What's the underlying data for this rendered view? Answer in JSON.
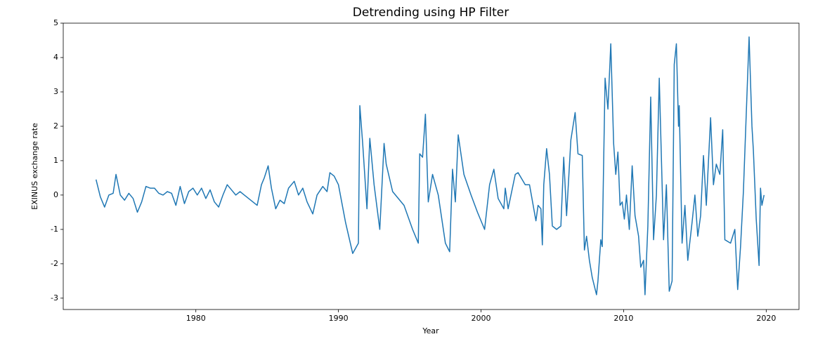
{
  "chart_data": {
    "type": "line",
    "title": "Detrending using HP Filter",
    "x_label": "Year",
    "y_label": "EXINUS exchange rate",
    "color": "#1f77b4",
    "x": [
      1973.0,
      1973.3,
      1973.6,
      1973.9,
      1974.2,
      1974.4,
      1974.7,
      1975.0,
      1975.3,
      1975.6,
      1975.9,
      1976.2,
      1976.5,
      1976.8,
      1977.1,
      1977.4,
      1977.7,
      1978.0,
      1978.3,
      1978.6,
      1978.9,
      1979.2,
      1979.5,
      1979.8,
      1980.1,
      1980.4,
      1980.7,
      1981.0,
      1981.3,
      1981.6,
      1981.9,
      1982.2,
      1982.5,
      1982.8,
      1983.1,
      1983.4,
      1983.7,
      1984.0,
      1984.3,
      1984.6,
      1984.8,
      1985.07,
      1985.3,
      1985.6,
      1985.9,
      1986.2,
      1986.5,
      1986.9,
      1987.2,
      1987.5,
      1987.8,
      1988.2,
      1988.5,
      1988.9,
      1989.2,
      1989.4,
      1989.7,
      1990.0,
      1990.5,
      1991.0,
      1991.4,
      1991.5,
      1991.7,
      1992.0,
      1992.2,
      1992.5,
      1992.9,
      1993.2,
      1993.35,
      1993.8,
      1994.6,
      1995.2,
      1995.6,
      1995.7,
      1995.9,
      1996.1,
      1996.3,
      1996.6,
      1997.0,
      1997.5,
      1997.8,
      1998.0,
      1998.2,
      1998.4,
      1998.8,
      1999.3,
      1999.75,
      2000.25,
      2000.6,
      2000.9,
      2001.2,
      2001.6,
      2001.7,
      2001.9,
      2002.4,
      2002.6,
      2003.1,
      2003.4,
      2003.7,
      2003.85,
      2004.0,
      2004.2,
      2004.3,
      2004.4,
      2004.6,
      2004.8,
      2005.0,
      2005.3,
      2005.6,
      2005.8,
      2006.0,
      2006.3,
      2006.6,
      2006.8,
      2007.1,
      2007.25,
      2007.4,
      2007.6,
      2007.8,
      2008.1,
      2008.2,
      2008.4,
      2008.5,
      2008.7,
      2008.9,
      2009.1,
      2009.3,
      2009.45,
      2009.6,
      2009.75,
      2009.9,
      2010.05,
      2010.2,
      2010.4,
      2010.6,
      2010.8,
      2011.05,
      2011.2,
      2011.4,
      2011.5,
      2011.7,
      2011.9,
      2012.1,
      2012.3,
      2012.5,
      2012.7,
      2012.8,
      2013.0,
      2013.2,
      2013.4,
      2013.55,
      2013.7,
      2013.85,
      2013.9,
      2014.1,
      2014.3,
      2014.5,
      2014.8,
      2015.0,
      2015.2,
      2015.4,
      2015.6,
      2015.8,
      2016.1,
      2016.3,
      2016.5,
      2016.75,
      2016.95,
      2017.1,
      2017.5,
      2017.8,
      2018.0,
      2018.2,
      2018.4,
      2018.8,
      2019.0,
      2019.1,
      2019.3,
      2019.5,
      2019.6,
      2019.7,
      2019.85
    ],
    "values": [
      0.45,
      -0.05,
      -0.35,
      0.0,
      0.05,
      0.6,
      0.0,
      -0.15,
      0.05,
      -0.1,
      -0.5,
      -0.2,
      0.25,
      0.2,
      0.2,
      0.05,
      0.0,
      0.1,
      0.05,
      -0.3,
      0.25,
      -0.25,
      0.1,
      0.2,
      0.0,
      0.2,
      -0.1,
      0.15,
      -0.2,
      -0.35,
      0.0,
      0.3,
      0.15,
      0.0,
      0.1,
      0.0,
      -0.1,
      -0.2,
      -0.3,
      0.3,
      0.5,
      0.85,
      0.2,
      -0.4,
      -0.15,
      -0.25,
      0.2,
      0.4,
      0.0,
      0.2,
      -0.2,
      -0.55,
      0.0,
      0.25,
      0.1,
      0.65,
      0.55,
      0.3,
      -0.8,
      -1.7,
      -1.4,
      2.6,
      1.5,
      -0.4,
      1.65,
      0.3,
      -1.0,
      1.5,
      0.9,
      0.1,
      -0.3,
      -1.0,
      -1.4,
      1.2,
      1.1,
      2.35,
      -0.2,
      0.6,
      0.0,
      -1.4,
      -1.65,
      0.75,
      -0.2,
      1.75,
      0.6,
      0.0,
      -0.5,
      -1.0,
      0.3,
      0.75,
      -0.1,
      -0.4,
      0.2,
      -0.4,
      0.6,
      0.65,
      0.3,
      0.3,
      -0.4,
      -0.75,
      -0.3,
      -0.4,
      -1.45,
      0.3,
      1.35,
      0.6,
      -0.9,
      -1.0,
      -0.9,
      1.1,
      -0.6,
      1.6,
      2.4,
      1.2,
      1.15,
      -1.6,
      -1.2,
      -1.9,
      -2.4,
      -2.9,
      -2.5,
      -1.3,
      -1.5,
      3.4,
      2.5,
      4.4,
      1.5,
      0.6,
      1.25,
      -0.3,
      -0.2,
      -0.7,
      0.0,
      -1.0,
      0.85,
      -0.6,
      -1.2,
      -2.1,
      -1.9,
      -2.9,
      -0.9,
      2.85,
      -1.3,
      0.0,
      3.4,
      0.3,
      -1.3,
      0.3,
      -2.8,
      -2.5,
      3.8,
      4.4,
      2.0,
      2.6,
      -1.4,
      -0.3,
      -1.9,
      -0.8,
      0.0,
      -1.2,
      -0.6,
      1.15,
      -0.3,
      2.25,
      0.3,
      0.9,
      0.6,
      1.9,
      -1.3,
      -1.4,
      -1.0,
      -2.75,
      -1.5,
      0.1,
      4.6,
      2.0,
      1.3,
      -0.7,
      -2.05,
      0.2,
      -0.3,
      0.0
    ],
    "xlim": [
      1970.7,
      2022.3
    ],
    "xticks": [
      1980,
      1990,
      2000,
      2010,
      2020
    ],
    "ylim": [
      -3.33,
      5
    ],
    "yticks": [
      -3,
      -2,
      -1,
      0,
      1,
      2,
      3,
      4,
      5
    ]
  }
}
